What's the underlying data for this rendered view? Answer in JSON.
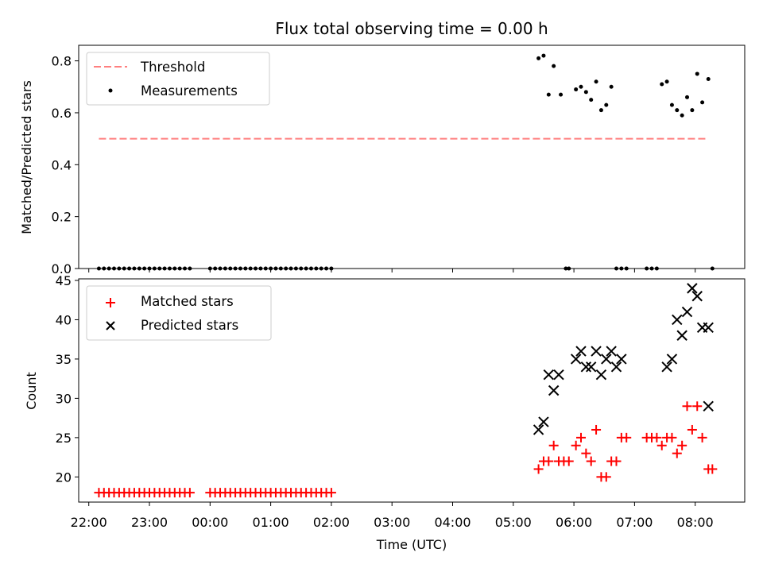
{
  "chart_data": [
    {
      "type": "scatter",
      "title": "Flux total observing time = 0.00 h",
      "xlabel": "",
      "ylabel": "Matched/Predicted stars",
      "xlim": [
        "21:50",
        "08:49"
      ],
      "ylim": [
        0,
        0.86
      ],
      "yticks": [
        "0.0",
        "0.2",
        "0.4",
        "0.6",
        "0.8"
      ],
      "yticks_values": [
        0,
        0.2,
        0.4,
        0.6,
        0.8
      ],
      "grid": false,
      "legend": "top-left",
      "threshold": {
        "name": "Threshold",
        "value": 0.5,
        "x_start": "22:10",
        "x_end": "08:13",
        "color": "#ff7f7f"
      },
      "series": [
        {
          "name": "Measurements",
          "color": "#000000",
          "x": [
            "22:10",
            "22:15",
            "22:20",
            "22:25",
            "22:30",
            "22:35",
            "22:40",
            "22:45",
            "22:50",
            "22:55",
            "23:00",
            "23:05",
            "23:10",
            "23:15",
            "23:20",
            "23:25",
            "23:30",
            "23:35",
            "23:40",
            "00:00",
            "00:05",
            "00:10",
            "00:15",
            "00:20",
            "00:25",
            "00:30",
            "00:35",
            "00:40",
            "00:45",
            "00:50",
            "00:55",
            "01:00",
            "01:05",
            "01:10",
            "01:15",
            "01:20",
            "01:25",
            "01:30",
            "01:35",
            "01:40",
            "01:45",
            "01:50",
            "01:55",
            "02:00",
            "05:25",
            "05:30",
            "05:35",
            "05:40",
            "05:47",
            "05:52",
            "05:55",
            "06:02",
            "06:07",
            "06:12",
            "06:17",
            "06:22",
            "06:27",
            "06:32",
            "06:37",
            "06:42",
            "06:47",
            "06:52",
            "07:12",
            "07:17",
            "07:22",
            "07:27",
            "07:32",
            "07:37",
            "07:42",
            "07:47",
            "07:52",
            "07:57",
            "08:02",
            "08:07",
            "08:13",
            "08:17"
          ],
          "y": [
            0,
            0,
            0,
            0,
            0,
            0,
            0,
            0,
            0,
            0,
            0,
            0,
            0,
            0,
            0,
            0,
            0,
            0,
            0,
            0,
            0,
            0,
            0,
            0,
            0,
            0,
            0,
            0,
            0,
            0,
            0,
            0,
            0,
            0,
            0,
            0,
            0,
            0,
            0,
            0,
            0,
            0,
            0,
            0,
            0.81,
            0.82,
            0.67,
            0.78,
            0.67,
            0,
            0,
            0.69,
            0.7,
            0.68,
            0.65,
            0.72,
            0.61,
            0.63,
            0.7,
            0,
            0,
            0,
            0,
            0,
            0,
            0.71,
            0.72,
            0.63,
            0.61,
            0.59,
            0.66,
            0.61,
            0.75,
            0.64,
            0.73,
            0
          ]
        }
      ]
    },
    {
      "type": "scatter",
      "title": "",
      "xlabel": "Time (UTC)",
      "ylabel": "Count",
      "xlim": [
        "21:50",
        "08:49"
      ],
      "ylim": [
        16.8,
        45.2
      ],
      "xticks": [
        "22:00",
        "23:00",
        "00:00",
        "01:00",
        "02:00",
        "03:00",
        "04:00",
        "05:00",
        "06:00",
        "07:00",
        "08:00"
      ],
      "yticks": [
        "20",
        "25",
        "30",
        "35",
        "40",
        "45"
      ],
      "yticks_values": [
        20,
        25,
        30,
        35,
        40,
        45
      ],
      "grid": false,
      "legend": "top-left",
      "series": [
        {
          "name": "Matched stars",
          "marker": "+",
          "color": "#ff0000",
          "x": [
            "22:10",
            "22:15",
            "22:20",
            "22:25",
            "22:30",
            "22:35",
            "22:40",
            "22:45",
            "22:50",
            "22:55",
            "23:00",
            "23:05",
            "23:10",
            "23:15",
            "23:20",
            "23:25",
            "23:30",
            "23:35",
            "23:40",
            "00:00",
            "00:05",
            "00:10",
            "00:15",
            "00:20",
            "00:25",
            "00:30",
            "00:35",
            "00:40",
            "00:45",
            "00:50",
            "00:55",
            "01:00",
            "01:05",
            "01:10",
            "01:15",
            "01:20",
            "01:25",
            "01:30",
            "01:35",
            "01:40",
            "01:45",
            "01:50",
            "01:55",
            "02:00",
            "05:25",
            "05:30",
            "05:35",
            "05:40",
            "05:45",
            "05:50",
            "05:55",
            "06:02",
            "06:07",
            "06:12",
            "06:17",
            "06:22",
            "06:27",
            "06:32",
            "06:37",
            "06:42",
            "06:47",
            "06:52",
            "07:12",
            "07:17",
            "07:22",
            "07:27",
            "07:32",
            "07:37",
            "07:42",
            "07:47",
            "07:52",
            "07:57",
            "08:02",
            "08:07",
            "08:13",
            "08:17"
          ],
          "y": [
            18,
            18,
            18,
            18,
            18,
            18,
            18,
            18,
            18,
            18,
            18,
            18,
            18,
            18,
            18,
            18,
            18,
            18,
            18,
            18,
            18,
            18,
            18,
            18,
            18,
            18,
            18,
            18,
            18,
            18,
            18,
            18,
            18,
            18,
            18,
            18,
            18,
            18,
            18,
            18,
            18,
            18,
            18,
            18,
            21,
            22,
            22,
            24,
            22,
            22,
            22,
            24,
            25,
            23,
            22,
            26,
            20,
            20,
            22,
            22,
            25,
            25,
            25,
            25,
            25,
            24,
            25,
            25,
            23,
            24,
            29,
            26,
            29,
            25,
            21,
            21
          ]
        },
        {
          "name": "Predicted stars",
          "marker": "x",
          "color": "#000000",
          "x": [
            "05:25",
            "05:30",
            "05:35",
            "05:40",
            "05:45",
            "06:02",
            "06:07",
            "06:12",
            "06:17",
            "06:22",
            "06:27",
            "06:32",
            "06:37",
            "06:42",
            "06:47",
            "07:32",
            "07:37",
            "07:42",
            "07:47",
            "07:52",
            "07:57",
            "08:02",
            "08:07",
            "08:13"
          ],
          "y": [
            26,
            27,
            33,
            31,
            33,
            35,
            36,
            34,
            34,
            36,
            33,
            35,
            36,
            34,
            35,
            34,
            35,
            40,
            38,
            41,
            44,
            43,
            39,
            39
          ]
        }
      ],
      "extra_point": {
        "x": "08:13",
        "y": 29
      }
    }
  ]
}
